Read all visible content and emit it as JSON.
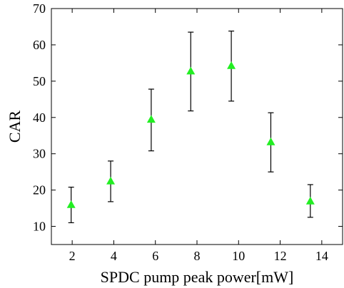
{
  "chart_data": {
    "type": "scatter",
    "xlabel": "SPDC pump peak power[mW]",
    "ylabel": "CAR",
    "xlim": [
      1,
      15
    ],
    "ylim": [
      5,
      70
    ],
    "xticks": [
      2,
      4,
      6,
      8,
      10,
      12,
      14
    ],
    "yticks": [
      10,
      20,
      30,
      40,
      50,
      60,
      70
    ],
    "grid": false,
    "marker": "triangle-up",
    "marker_color": "#22ee22",
    "points": [
      {
        "x": 1.95,
        "y": 16.0,
        "y_low": 11.0,
        "y_high": 20.8
      },
      {
        "x": 3.85,
        "y": 22.5,
        "y_low": 16.8,
        "y_high": 28.0
      },
      {
        "x": 5.8,
        "y": 39.5,
        "y_low": 30.8,
        "y_high": 47.8
      },
      {
        "x": 7.7,
        "y": 52.8,
        "y_low": 41.8,
        "y_high": 63.5
      },
      {
        "x": 9.65,
        "y": 54.3,
        "y_low": 44.5,
        "y_high": 63.8
      },
      {
        "x": 11.55,
        "y": 33.3,
        "y_low": 25.0,
        "y_high": 41.3
      },
      {
        "x": 13.45,
        "y": 17.0,
        "y_low": 12.5,
        "y_high": 21.5
      }
    ]
  }
}
